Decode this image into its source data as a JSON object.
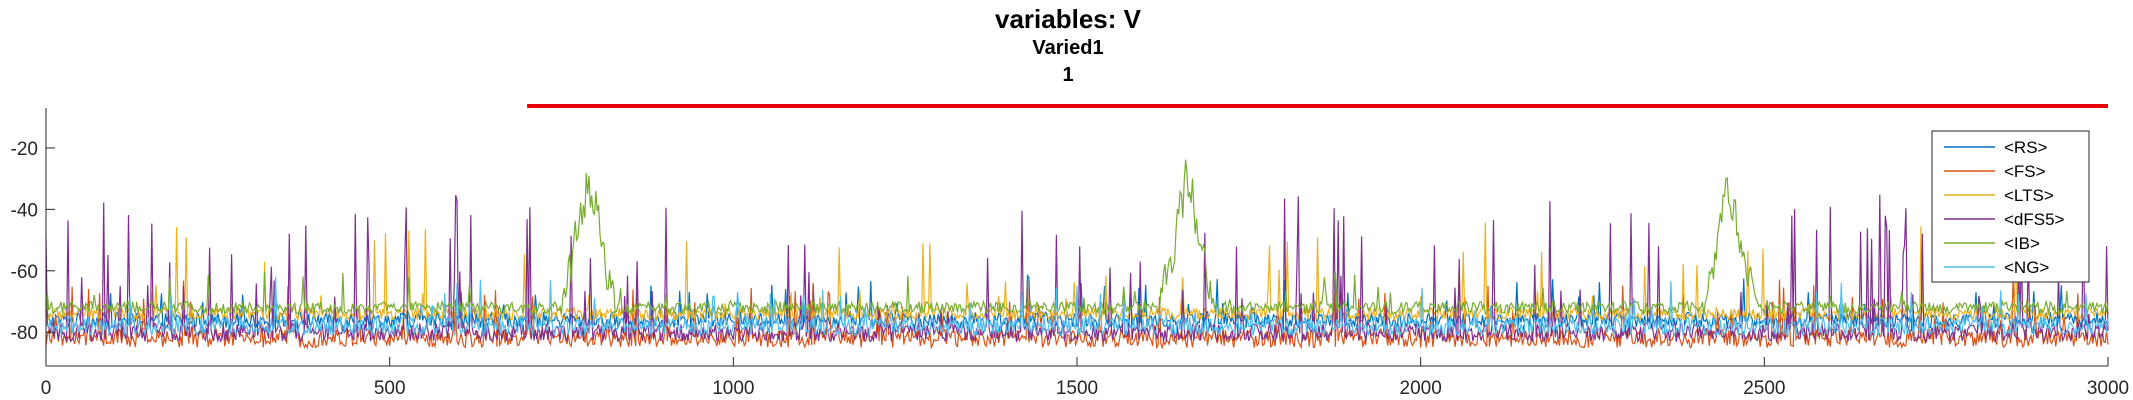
{
  "chart_data": {
    "type": "line",
    "title": "variables: V",
    "subtitle": "Varied1",
    "subtitle2": "1",
    "xlabel": "",
    "ylabel": "",
    "xlim": [
      0,
      3000
    ],
    "ylim": [
      -91,
      -7
    ],
    "xticks": [
      "0",
      "500",
      "1000",
      "1500",
      "2000",
      "2500",
      "3000"
    ],
    "yticks": [
      "-20",
      "-40",
      "-60",
      "-80"
    ],
    "grid": false,
    "legend_position": "top-right",
    "reference_line": {
      "x_start": 700,
      "x_end": 3000,
      "y": -7,
      "color": "#e6000a"
    },
    "series": [
      {
        "name": "<RS>",
        "color": "#0072bd",
        "baseline": -76,
        "noise": 2.5,
        "spike_rate": 0.05,
        "spike_max": 14
      },
      {
        "name": "<FS>",
        "color": "#d95319",
        "baseline": -82,
        "noise": 3,
        "spike_rate": 0.08,
        "spike_max": 18
      },
      {
        "name": "<LTS>",
        "color": "#edb120",
        "baseline": -74,
        "noise": 2,
        "spike_rate": 0.04,
        "spike_max": 30
      },
      {
        "name": "<dFS5>",
        "color": "#7e2f8e",
        "baseline": -80,
        "noise": 3,
        "spike_rate": 0.08,
        "spike_max": 45
      },
      {
        "name": "<IB>",
        "color": "#77ac30",
        "baseline": -72,
        "noise": 2,
        "spike_rate": 0.03,
        "spike_max": 12,
        "bursts": [
          {
            "x": 790,
            "peak": -22
          },
          {
            "x": 1660,
            "peak": -18
          },
          {
            "x": 2450,
            "peak": -22
          }
        ]
      },
      {
        "name": "<NG>",
        "color": "#4dbeee",
        "baseline": -78,
        "noise": 3,
        "spike_rate": 0.06,
        "spike_max": 14
      }
    ]
  }
}
